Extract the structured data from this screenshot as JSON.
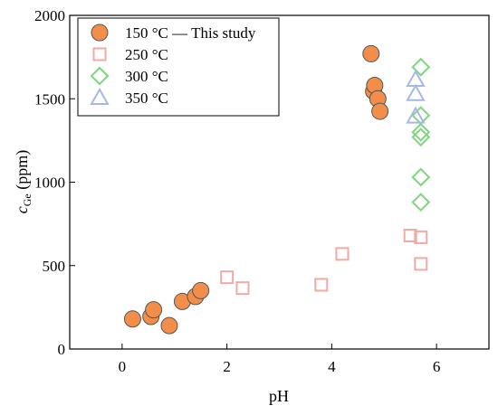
{
  "chart_data": {
    "type": "scatter",
    "xlabel": "pH",
    "ylabel_main": "c",
    "ylabel_sub": "Ge",
    "ylabel_unit": " (ppm)",
    "xlim": [
      -1,
      7
    ],
    "ylim": [
      0,
      2000
    ],
    "xticks": [
      0,
      2,
      4,
      6
    ],
    "yticks": [
      0,
      500,
      1000,
      1500,
      2000
    ],
    "grid": false,
    "legend_position": "top-left",
    "series": [
      {
        "name": "150 °C — This study",
        "marker": "circle",
        "color": "#F28E4A",
        "stroke": "#555555",
        "points": [
          [
            0.2,
            180
          ],
          [
            0.55,
            195
          ],
          [
            0.6,
            235
          ],
          [
            0.9,
            140
          ],
          [
            1.15,
            285
          ],
          [
            1.4,
            315
          ],
          [
            1.5,
            350
          ],
          [
            4.75,
            1770
          ],
          [
            4.8,
            1545
          ],
          [
            4.82,
            1580
          ],
          [
            4.88,
            1500
          ],
          [
            4.92,
            1425
          ]
        ]
      },
      {
        "name": "250 °C",
        "marker": "square",
        "color": "#F3A9A4",
        "points": [
          [
            2.0,
            430
          ],
          [
            2.3,
            365
          ],
          [
            3.8,
            385
          ],
          [
            4.2,
            570
          ],
          [
            5.5,
            680
          ],
          [
            5.7,
            670
          ],
          [
            5.7,
            510
          ]
        ]
      },
      {
        "name": "300 °C",
        "marker": "diamond",
        "color": "#7DD67D",
        "points": [
          [
            5.7,
            1690
          ],
          [
            5.7,
            1400
          ],
          [
            5.7,
            1300
          ],
          [
            5.7,
            1270
          ],
          [
            5.7,
            1030
          ],
          [
            5.7,
            880
          ]
        ]
      },
      {
        "name": "350 °C",
        "marker": "triangle",
        "color": "#A7B8E6",
        "points": [
          [
            5.6,
            1615
          ],
          [
            5.6,
            1530
          ],
          [
            5.6,
            1395
          ]
        ]
      }
    ]
  }
}
